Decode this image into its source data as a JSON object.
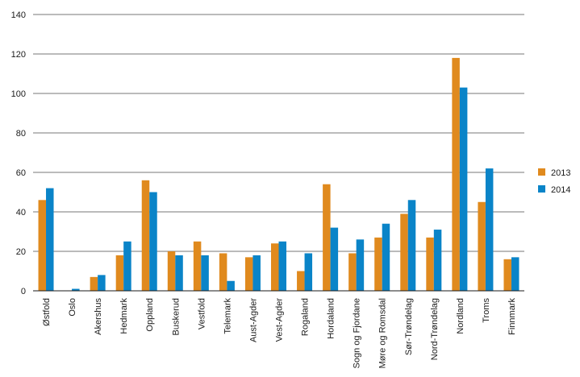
{
  "chart_data": {
    "type": "bar",
    "title": "",
    "xlabel": "",
    "ylabel": "",
    "ylim": [
      0,
      140
    ],
    "yticks": [
      0,
      20,
      40,
      60,
      80,
      100,
      120,
      140
    ],
    "grid": true,
    "legend_position": "right",
    "categories": [
      "Østfold",
      "Oslo",
      "Akershus",
      "Hedmark",
      "Oppland",
      "Buskerud",
      "Vestfold",
      "Telemark",
      "Aust-Agder",
      "Vest-Agder",
      "Rogaland",
      "Hordaland",
      "Sogn og Fjordane",
      "Møre og Romsdal",
      "Sør-Trøndelag",
      "Nord-Trøndelag",
      "Nordland",
      "Troms",
      "Finnmark"
    ],
    "series": [
      {
        "name": "2013",
        "color": "#E08A1E",
        "values": [
          46,
          0,
          7,
          18,
          56,
          20,
          25,
          19,
          17,
          24,
          10,
          54,
          19,
          27,
          39,
          27,
          118,
          45,
          16
        ]
      },
      {
        "name": "2014",
        "color": "#0A84C8",
        "values": [
          52,
          1,
          8,
          25,
          50,
          18,
          18,
          5,
          18,
          25,
          19,
          32,
          26,
          34,
          46,
          31,
          103,
          62,
          17
        ]
      }
    ]
  }
}
